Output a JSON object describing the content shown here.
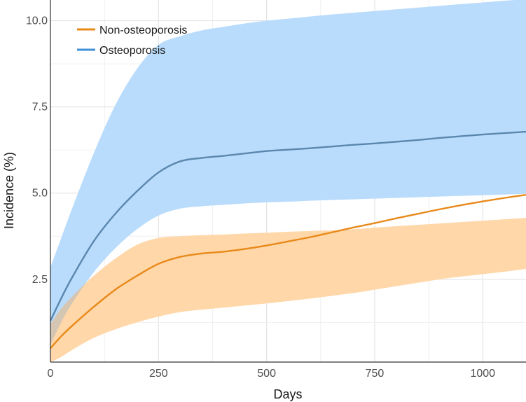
{
  "chart_data": {
    "type": "line",
    "title": "",
    "xlabel": "Days",
    "ylabel": "Incidence (%)",
    "xlim": [
      0,
      1100
    ],
    "ylim": [
      0.1,
      10.6
    ],
    "x_ticks": [
      0,
      250,
      500,
      750,
      1000
    ],
    "x_tick_labels": [
      "0",
      "250",
      "500",
      "750",
      "1000"
    ],
    "y_ticks": [
      2.5,
      5.0,
      7.5,
      10.0
    ],
    "y_tick_labels": [
      "2.5",
      "5.0",
      "7.5",
      "10.0"
    ],
    "grid": true,
    "legend_position": "top-left",
    "series": [
      {
        "name": "Non-osteoporosis",
        "color": "#E8891A",
        "band_color": "#FFD7A8",
        "x": [
          0,
          25,
          50,
          100,
          150,
          200,
          250,
          300,
          350,
          400,
          450,
          500,
          550,
          600,
          650,
          700,
          750,
          800,
          850,
          900,
          950,
          1000,
          1050,
          1100
        ],
        "y": [
          0.5,
          0.85,
          1.15,
          1.7,
          2.2,
          2.6,
          2.95,
          3.15,
          3.25,
          3.3,
          3.38,
          3.48,
          3.6,
          3.72,
          3.86,
          4.0,
          4.13,
          4.27,
          4.4,
          4.53,
          4.65,
          4.76,
          4.86,
          4.95
        ],
        "lower": [
          0.1,
          0.25,
          0.45,
          0.8,
          1.05,
          1.25,
          1.42,
          1.55,
          1.62,
          1.68,
          1.74,
          1.8,
          1.87,
          1.94,
          2.02,
          2.1,
          2.2,
          2.3,
          2.4,
          2.5,
          2.58,
          2.65,
          2.72,
          2.8
        ],
        "upper": [
          1.2,
          1.65,
          2.0,
          2.6,
          3.1,
          3.5,
          3.7,
          3.75,
          3.78,
          3.8,
          3.83,
          3.85,
          3.88,
          3.9,
          3.92,
          3.95,
          4.0,
          4.04,
          4.08,
          4.12,
          4.16,
          4.2,
          4.24,
          4.28
        ]
      },
      {
        "name": "Osteoporosis",
        "color": "#3F8FD8",
        "band_color": "#B9DCFC",
        "x": [
          0,
          25,
          50,
          100,
          150,
          200,
          250,
          300,
          350,
          400,
          450,
          500,
          550,
          600,
          650,
          700,
          750,
          800,
          850,
          900,
          950,
          1000,
          1050,
          1100
        ],
        "y": [
          1.3,
          1.95,
          2.55,
          3.6,
          4.4,
          5.05,
          5.6,
          5.92,
          6.02,
          6.08,
          6.15,
          6.22,
          6.26,
          6.3,
          6.35,
          6.4,
          6.44,
          6.49,
          6.54,
          6.6,
          6.65,
          6.7,
          6.74,
          6.78
        ],
        "lower": [
          0.6,
          1.25,
          1.8,
          2.7,
          3.4,
          3.95,
          4.35,
          4.55,
          4.62,
          4.66,
          4.7,
          4.73,
          4.75,
          4.78,
          4.8,
          4.82,
          4.84,
          4.86,
          4.88,
          4.9,
          4.92,
          4.94,
          4.96,
          4.98
        ],
        "upper": [
          2.85,
          3.7,
          4.55,
          6.15,
          7.55,
          8.6,
          9.3,
          9.55,
          9.72,
          9.82,
          9.92,
          10.0,
          10.06,
          10.12,
          10.18,
          10.23,
          10.28,
          10.33,
          10.38,
          10.43,
          10.48,
          10.53,
          10.58,
          10.62
        ]
      }
    ],
    "overlap_color": "#D5C6B4",
    "legend_entries": [
      "Non-osteoporosis",
      "Osteoporosis"
    ]
  }
}
